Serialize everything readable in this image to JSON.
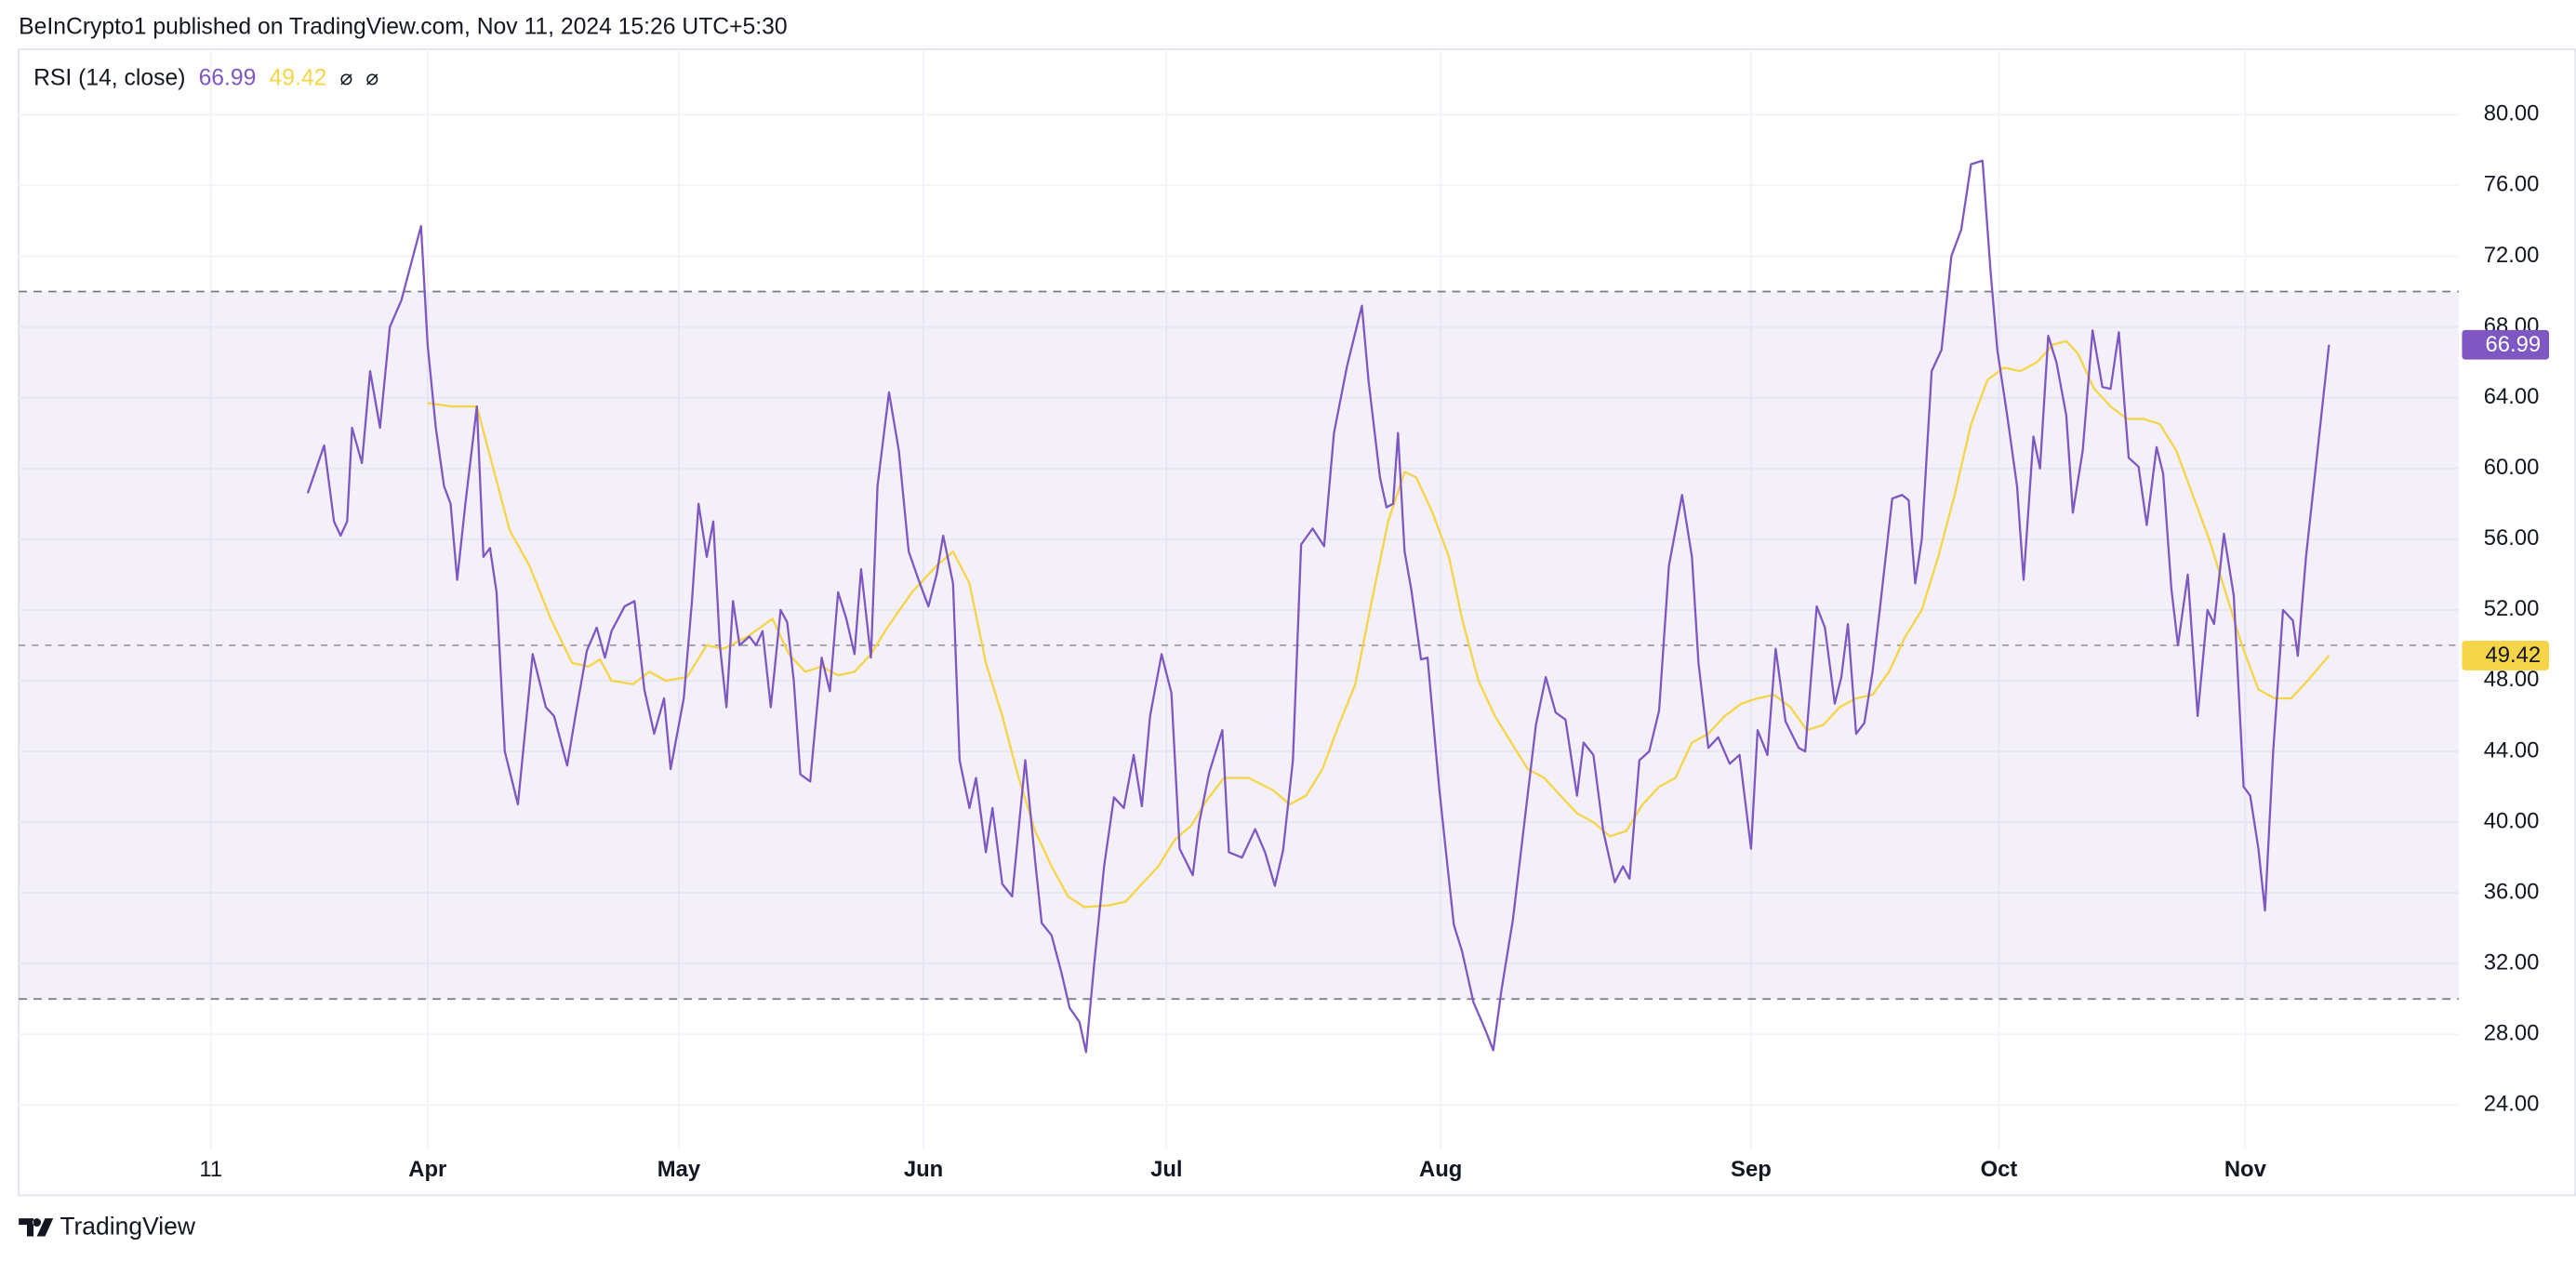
{
  "header": "BeInCrypto1 published on TradingView.com, Nov 11, 2024 15:26 UTC+5:30",
  "footer": "TradingView",
  "chart_data": {
    "type": "line",
    "title": "RSI (14, close)",
    "legend_icons": [
      "⌀",
      "⌀"
    ],
    "xlim": [
      -35.2,
      262
    ],
    "xticks": [
      {
        "value": -11.8,
        "label": "11"
      },
      {
        "value": 14.6,
        "label": "Apr"
      },
      {
        "value": 45.2,
        "label": "May"
      },
      {
        "value": 75,
        "label": "Jun"
      },
      {
        "value": 104.6,
        "label": "Jul"
      },
      {
        "value": 138,
        "label": "Aug"
      },
      {
        "value": 175.8,
        "label": "Sep"
      },
      {
        "value": 206,
        "label": "Oct"
      },
      {
        "value": 236,
        "label": "Nov"
      }
    ],
    "ylim": [
      21.5,
      83.7
    ],
    "yticks": [
      {
        "value": 24,
        "label": "24.00"
      },
      {
        "value": 28,
        "label": "28.00"
      },
      {
        "value": 32,
        "label": "32.00"
      },
      {
        "value": 36,
        "label": "36.00"
      },
      {
        "value": 40,
        "label": "40.00"
      },
      {
        "value": 44,
        "label": "44.00"
      },
      {
        "value": 48,
        "label": "48.00"
      },
      {
        "value": 52,
        "label": "52.00"
      },
      {
        "value": 56,
        "label": "56.00"
      },
      {
        "value": 60,
        "label": "60.00"
      },
      {
        "value": 64,
        "label": "64.00"
      },
      {
        "value": 68,
        "label": "68.00"
      },
      {
        "value": 72,
        "label": "72.00"
      },
      {
        "value": 76,
        "label": "76.00"
      },
      {
        "value": 80,
        "label": "80.00"
      }
    ],
    "grid": true,
    "bands": {
      "upper": 70,
      "middle": 50,
      "lower": 30,
      "color": "#7e57c2"
    },
    "series": [
      {
        "color": "#7e57c2",
        "x": [
          0,
          2,
          3.2,
          4,
          4.8,
          5.4,
          6.6,
          7.6,
          8.8,
          10,
          11.4,
          13.8,
          14.6,
          15.6,
          16.6,
          17.4,
          18.2,
          19.2,
          20.6,
          21.4,
          22.2,
          23,
          24,
          25.6,
          27.4,
          29,
          30,
          31.6,
          32.6,
          34,
          35.2,
          36.2,
          37,
          38.6,
          39.8,
          41,
          42.2,
          43.4,
          44.2,
          45.8,
          46.8,
          47.6,
          48.6,
          49.4,
          50.2,
          51,
          51.8,
          52.6,
          53.8,
          54.6,
          55.4,
          56.4,
          57.6,
          58.4,
          59.2,
          60,
          61.2,
          62.6,
          63.6,
          64.6,
          65.6,
          66.6,
          67.4,
          68.6,
          69.4,
          70.8,
          72,
          73.2,
          74.4,
          75.6,
          76.6,
          77.4,
          78.6,
          79.4,
          80.6,
          81.4,
          82.6,
          83.4,
          84.6,
          85.8,
          87.4,
          88.6,
          89.4,
          90.6,
          91.8,
          92.8,
          94,
          94.8,
          95.8,
          97,
          98.2,
          99.4,
          100.6,
          101.6,
          102.6,
          104,
          105.2,
          106.2,
          107.8,
          108.6,
          109.8,
          111.4,
          112.2,
          113.8,
          115.4,
          116.6,
          117.8,
          118.8,
          120,
          121,
          122.4,
          123.8,
          125,
          126.6,
          128.4,
          129.2,
          130.6,
          131.4,
          132.2,
          132.8,
          133.6,
          134.4,
          135.6,
          136.4,
          137.8,
          138.6,
          139.6,
          140.6,
          142,
          143.4,
          144.4,
          145.4,
          146.8,
          148.2,
          149.6,
          150.8,
          152,
          153.2,
          154.6,
          155.4,
          156.6,
          157.8,
          159.2,
          160.2,
          161,
          162.2,
          163.4,
          164.6,
          165.8,
          167.4,
          168.6,
          169.4,
          170.6,
          171.8,
          173.2,
          174.4,
          175.8,
          176.6,
          177.8,
          178.8,
          180,
          181.6,
          182.4,
          183.8,
          184.8,
          186,
          186.8,
          187.6,
          188.6,
          189.6,
          190.6,
          191.6,
          193,
          194.2,
          195,
          195.8,
          196.6,
          197.8,
          199,
          200.2,
          201.4,
          202.6,
          204,
          205,
          205.8,
          207,
          208.2,
          209,
          210.2,
          211,
          212,
          213,
          214.2,
          215,
          216.2,
          217.4,
          218.6,
          219.6,
          220.6,
          221.8,
          223,
          224,
          225.2,
          226,
          227,
          227.8,
          229,
          230.2,
          231.4,
          232.2,
          233.4,
          234.6,
          235.8,
          236.6,
          237.6,
          238.4,
          239.4,
          240.6,
          241.8,
          242.4,
          243.4,
          246.2
        ],
        "values": [
          58.6,
          61.3,
          57,
          56.2,
          57,
          62.3,
          60.3,
          65.5,
          62.3,
          68,
          69.5,
          73.7,
          67,
          62.3,
          59,
          58,
          53.7,
          58,
          63.5,
          55,
          55.5,
          53,
          44,
          41,
          49.5,
          46.5,
          46,
          43.2,
          46,
          49.7,
          51,
          49.3,
          50.8,
          52.2,
          52.5,
          47.5,
          45,
          47,
          43,
          47,
          52.5,
          58,
          55,
          57,
          50,
          46.5,
          52.5,
          50,
          50.5,
          50,
          50.8,
          46.5,
          52,
          51.3,
          48,
          42.7,
          42.3,
          49.3,
          47.4,
          53,
          51.5,
          49.5,
          54.3,
          49.3,
          59,
          64.3,
          61,
          55.3,
          53.7,
          52.2,
          54,
          56.2,
          53.5,
          43.5,
          40.8,
          42.5,
          38.3,
          40.8,
          36.5,
          35.8,
          43.5,
          37.8,
          34.3,
          33.6,
          31.5,
          29.5,
          28.7,
          27,
          32,
          37.5,
          41.4,
          40.8,
          43.8,
          40.9,
          46,
          49.5,
          47.3,
          38.5,
          37,
          40,
          42.8,
          45.2,
          38.3,
          38,
          39.6,
          38.3,
          36.4,
          38.4,
          43.5,
          55.7,
          56.6,
          55.6,
          62,
          65.8,
          69.2,
          65,
          59.5,
          57.8,
          58,
          62,
          55.3,
          53.2,
          49.2,
          49.3,
          42,
          38.5,
          34.2,
          32.7,
          29.8,
          28.3,
          27.1,
          30.5,
          34.5,
          40,
          45.5,
          48.2,
          46.2,
          45.8,
          41.5,
          44.5,
          43.8,
          39.5,
          36.6,
          37.5,
          36.8,
          43.5,
          44,
          46.3,
          54.5,
          58.5,
          55,
          49,
          44.2,
          44.8,
          43.3,
          43.8,
          38.5,
          45.2,
          43.8,
          49.8,
          45.7,
          44.2,
          44,
          52.2,
          51,
          46.7,
          48.2,
          51.2,
          45,
          45.6,
          48.5,
          52.5,
          58.3,
          58.5,
          58.2,
          53.5,
          56,
          65.5,
          66.7,
          72,
          73.5,
          77.2,
          77.4,
          71,
          66.7,
          63,
          59,
          53.7,
          61.8,
          60,
          67.5,
          66,
          63,
          57.5,
          61,
          67.8,
          64.6,
          64.5,
          67.7,
          60.6,
          60.1,
          56.8,
          61.2,
          59.7,
          53.2,
          50,
          54,
          46,
          52,
          51.2,
          56.3,
          52.8,
          42,
          41.5,
          38.5,
          35,
          44,
          52,
          51.4,
          49.4,
          55,
          66.99
        ]
      },
      {
        "color": "#f5d547",
        "x": [
          14.6,
          17.6,
          20.6,
          22.6,
          24.6,
          27,
          29.6,
          32.2,
          34.2,
          35.6,
          37,
          39.6,
          41.6,
          43.6,
          46.2,
          48.6,
          50.6,
          53.6,
          56.6,
          58.6,
          60.6,
          62.6,
          64.6,
          66.6,
          68.6,
          70.6,
          73.6,
          76.6,
          78.6,
          80.6,
          82.6,
          84.6,
          86.6,
          88.6,
          90.6,
          92.6,
          94.6,
          97.6,
          99.6,
          101.6,
          103.6,
          105.6,
          107.6,
          109.6,
          111.6,
          114.6,
          117.6,
          119.6,
          121.6,
          123.6,
          125.6,
          127.6,
          129.6,
          131.6,
          133.6,
          135,
          137,
          139,
          140.6,
          142.6,
          144.6,
          146.6,
          148.6,
          150.6,
          152.6,
          154.6,
          156.6,
          158.6,
          160.6,
          162.6,
          164.6,
          166.6,
          168.6,
          170.6,
          172.6,
          174.6,
          176.6,
          178.6,
          180.6,
          182.6,
          184.6,
          186.6,
          188.6,
          190.6,
          192.6,
          194.6,
          196.6,
          198.6,
          200.6,
          202.6,
          204.6,
          206.6,
          208.6,
          210.6,
          212.6,
          214.2,
          215.6,
          217.6,
          219.6,
          221.6,
          223.6,
          225.6,
          227.6,
          229.6,
          231.6,
          233.6,
          235.6,
          237.6,
          239.6,
          241.6,
          243.6,
          246.2
        ],
        "values": [
          63.7,
          63.5,
          63.5,
          60,
          56.5,
          54.5,
          51.5,
          49,
          48.8,
          49.2,
          48,
          47.8,
          48.5,
          48,
          48.2,
          50,
          49.8,
          50.5,
          51.5,
          49.5,
          48.5,
          48.8,
          48.3,
          48.5,
          49.5,
          51,
          53,
          54.5,
          55.3,
          53.5,
          49,
          46,
          42.5,
          39.5,
          37.5,
          35.8,
          35.2,
          35.3,
          35.5,
          36.5,
          37.5,
          39,
          39.8,
          41.3,
          42.5,
          42.5,
          41.8,
          41,
          41.5,
          43,
          45.5,
          47.8,
          52.5,
          57,
          59.8,
          59.5,
          57.5,
          55,
          51.5,
          48,
          46,
          44.5,
          43,
          42.5,
          41.5,
          40.5,
          40,
          39.2,
          39.5,
          41,
          42,
          42.5,
          44.5,
          45,
          46,
          46.7,
          47,
          47.2,
          46.5,
          45.2,
          45.5,
          46.5,
          47,
          47.2,
          48.5,
          50.5,
          52,
          55,
          58.5,
          62.5,
          65,
          65.7,
          65.5,
          66,
          67,
          67.2,
          66.5,
          64.5,
          63.5,
          62.8,
          62.8,
          62.5,
          61,
          58.5,
          56,
          53,
          50,
          47.5,
          47,
          47,
          48,
          49.42
        ]
      }
    ]
  }
}
